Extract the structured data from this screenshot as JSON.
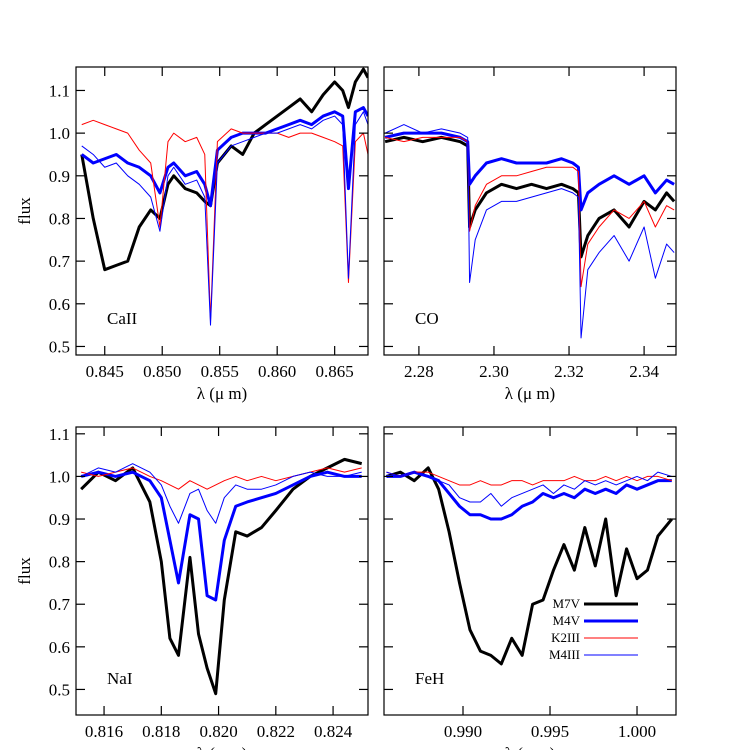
{
  "chart_data": [
    {
      "type": "line",
      "annotation": "CaII",
      "xlabel": "λ (μ m)",
      "ylabel": "flux",
      "xlim": [
        0.8425,
        0.8679
      ],
      "ylim": [
        0.48,
        1.155
      ],
      "xticks": [
        0.845,
        {
          "value": 0.85,
          "label": "0.850"
        },
        0.855,
        {
          "value": 0.86,
          "label": "0.860"
        },
        0.865
      ],
      "yticks": [
        0.5,
        0.6,
        0.7,
        0.8,
        0.9,
        {
          "value": 1,
          "label": "1.0"
        },
        1.1
      ],
      "x": [
        0.843,
        0.844,
        0.845,
        0.846,
        0.847,
        0.848,
        0.849,
        0.8498,
        0.8505,
        0.851,
        0.852,
        0.853,
        0.8537,
        0.8542,
        0.8548,
        0.856,
        0.857,
        0.858,
        0.859,
        0.86,
        0.861,
        0.862,
        0.863,
        0.864,
        0.865,
        0.8657,
        0.8662,
        0.8668,
        0.8675,
        0.8679
      ],
      "series": [
        {
          "color": "#000000",
          "linewidth": 3,
          "values": [
            0.95,
            0.8,
            0.68,
            0.69,
            0.7,
            0.78,
            0.82,
            0.8,
            0.88,
            0.9,
            0.87,
            0.86,
            0.84,
            0.83,
            0.93,
            0.97,
            0.95,
            1.0,
            1.02,
            1.04,
            1.06,
            1.08,
            1.05,
            1.09,
            1.12,
            1.1,
            1.06,
            1.12,
            1.15,
            1.13
          ]
        },
        {
          "color": "#0000ff",
          "linewidth": 3,
          "values": [
            0.95,
            0.93,
            0.94,
            0.95,
            0.93,
            0.92,
            0.9,
            0.86,
            0.92,
            0.93,
            0.9,
            0.91,
            0.88,
            0.83,
            0.96,
            0.99,
            1.0,
            1.0,
            1.0,
            1.01,
            1.02,
            1.03,
            1.02,
            1.04,
            1.05,
            1.04,
            0.87,
            1.05,
            1.06,
            1.04
          ]
        },
        {
          "color": "#ff0000",
          "linewidth": 1,
          "values": [
            1.02,
            1.03,
            1.02,
            1.01,
            1.0,
            0.96,
            0.93,
            0.78,
            0.98,
            1.0,
            0.98,
            0.99,
            0.95,
            0.56,
            0.98,
            1.01,
            1.0,
            1.0,
            1.0,
            1.0,
            0.99,
            1.0,
            1.0,
            0.99,
            0.98,
            0.97,
            0.65,
            0.98,
            1.0,
            0.95
          ]
        },
        {
          "color": "#0000ff",
          "linewidth": 1,
          "values": [
            0.97,
            0.95,
            0.92,
            0.93,
            0.9,
            0.88,
            0.85,
            0.77,
            0.9,
            0.92,
            0.88,
            0.89,
            0.85,
            0.55,
            0.93,
            0.97,
            0.98,
            0.99,
            1.0,
            1.0,
            1.01,
            1.02,
            1.01,
            1.03,
            1.04,
            1.02,
            0.66,
            1.02,
            1.05,
            1.02
          ]
        }
      ]
    },
    {
      "type": "line",
      "annotation": "CO",
      "xlabel": "λ (μ m)",
      "xlim": [
        2.2707,
        2.3485
      ],
      "ylim": [
        0.48,
        1.155
      ],
      "xticks": [
        2.28,
        {
          "value": 2.3,
          "label": "2.30"
        },
        2.32,
        2.34
      ],
      "yticks": [
        0.5,
        0.6,
        0.7,
        0.8,
        0.9,
        1,
        1.1
      ],
      "x": [
        2.271,
        2.276,
        2.281,
        2.286,
        2.291,
        2.293,
        2.2935,
        2.295,
        2.298,
        2.302,
        2.306,
        2.31,
        2.314,
        2.318,
        2.321,
        2.3225,
        2.3232,
        2.325,
        2.328,
        2.332,
        2.336,
        2.34,
        2.343,
        2.346,
        2.348
      ],
      "series": [
        {
          "color": "#000000",
          "linewidth": 3,
          "values": [
            0.98,
            0.99,
            0.98,
            0.99,
            0.98,
            0.97,
            0.78,
            0.82,
            0.86,
            0.88,
            0.87,
            0.88,
            0.87,
            0.88,
            0.87,
            0.86,
            0.71,
            0.76,
            0.8,
            0.82,
            0.78,
            0.84,
            0.82,
            0.86,
            0.84
          ]
        },
        {
          "color": "#0000ff",
          "linewidth": 3,
          "values": [
            0.99,
            1.0,
            1.0,
            1.0,
            0.99,
            0.98,
            0.88,
            0.9,
            0.93,
            0.94,
            0.93,
            0.93,
            0.93,
            0.94,
            0.93,
            0.92,
            0.82,
            0.86,
            0.88,
            0.9,
            0.88,
            0.9,
            0.86,
            0.89,
            0.88
          ]
        },
        {
          "color": "#ff0000",
          "linewidth": 1,
          "values": [
            0.99,
            0.98,
            0.99,
            0.99,
            0.99,
            0.98,
            0.77,
            0.83,
            0.88,
            0.9,
            0.9,
            0.91,
            0.92,
            0.92,
            0.92,
            0.91,
            0.64,
            0.74,
            0.78,
            0.82,
            0.8,
            0.84,
            0.78,
            0.83,
            0.82
          ]
        },
        {
          "color": "#0000ff",
          "linewidth": 1,
          "values": [
            1.0,
            1.02,
            1.0,
            1.01,
            1.0,
            0.99,
            0.65,
            0.75,
            0.82,
            0.84,
            0.84,
            0.85,
            0.86,
            0.87,
            0.86,
            0.85,
            0.52,
            0.68,
            0.72,
            0.76,
            0.7,
            0.78,
            0.66,
            0.74,
            0.72
          ]
        }
      ]
    },
    {
      "type": "line",
      "annotation": "NaI",
      "xlabel": "λ (μ m)",
      "ylabel": "flux",
      "xlim": [
        0.81502,
        0.82522
      ],
      "ylim": [
        0.44,
        1.116
      ],
      "xticks": [
        0.816,
        0.818,
        {
          "value": 0.82,
          "label": "0.820"
        },
        0.822,
        0.824
      ],
      "yticks": [
        0.5,
        0.6,
        0.7,
        0.8,
        0.9,
        {
          "value": 1,
          "label": "1.0"
        },
        1.1
      ],
      "x": [
        0.8152,
        0.8158,
        0.8164,
        0.817,
        0.8176,
        0.818,
        0.8183,
        0.8186,
        0.819,
        0.8193,
        0.8196,
        0.8199,
        0.8202,
        0.8206,
        0.821,
        0.8215,
        0.822,
        0.8226,
        0.8232,
        0.8238,
        0.8244,
        0.825
      ],
      "series": [
        {
          "color": "#000000",
          "linewidth": 3,
          "values": [
            0.97,
            1.01,
            0.99,
            1.02,
            0.94,
            0.8,
            0.62,
            0.58,
            0.81,
            0.63,
            0.55,
            0.49,
            0.71,
            0.87,
            0.86,
            0.88,
            0.92,
            0.97,
            1.0,
            1.02,
            1.04,
            1.03
          ]
        },
        {
          "color": "#0000ff",
          "linewidth": 3,
          "values": [
            1.0,
            1.01,
            1.0,
            1.01,
            0.99,
            0.95,
            0.85,
            0.75,
            0.91,
            0.9,
            0.72,
            0.71,
            0.85,
            0.93,
            0.94,
            0.95,
            0.96,
            0.98,
            1.0,
            1.01,
            1.0,
            1.0
          ]
        },
        {
          "color": "#ff0000",
          "linewidth": 1,
          "values": [
            1.01,
            1.0,
            1.01,
            1.02,
            1.0,
            0.99,
            0.98,
            0.97,
            0.99,
            0.98,
            0.97,
            0.98,
            0.99,
            1.0,
            0.99,
            1.0,
            0.99,
            1.0,
            1.01,
            1.02,
            1.01,
            1.02
          ]
        },
        {
          "color": "#0000ff",
          "linewidth": 1,
          "values": [
            1.0,
            1.02,
            1.01,
            1.03,
            1.01,
            0.98,
            0.93,
            0.89,
            0.96,
            0.97,
            0.92,
            0.89,
            0.95,
            0.98,
            0.97,
            0.97,
            0.98,
            1.0,
            1.01,
            1.0,
            1.0,
            1.01
          ]
        }
      ]
    },
    {
      "type": "line",
      "annotation": "FeH",
      "xlabel": "λ (μ m)",
      "legend": "lower right",
      "xlim": [
        0.98546,
        1.00224
      ],
      "ylim": [
        0.44,
        1.116
      ],
      "xticks": [
        {
          "value": 0.99,
          "label": "0.990"
        },
        0.995,
        {
          "value": 1,
          "label": "1.000"
        }
      ],
      "yticks": [
        0.5,
        0.6,
        0.7,
        0.8,
        0.9,
        1,
        1.1
      ],
      "x": [
        0.9856,
        0.9864,
        0.9872,
        0.988,
        0.9886,
        0.9892,
        0.9898,
        0.9904,
        0.991,
        0.9916,
        0.9922,
        0.9928,
        0.9934,
        0.994,
        0.9946,
        0.9952,
        0.9958,
        0.9964,
        0.997,
        0.9976,
        0.9982,
        0.9988,
        0.9994,
        1.0,
        1.0006,
        1.0012,
        1.002
      ],
      "series": [
        {
          "name": "M7V",
          "color": "#000000",
          "linewidth": 3,
          "values": [
            1.0,
            1.01,
            0.99,
            1.02,
            0.97,
            0.87,
            0.75,
            0.64,
            0.59,
            0.58,
            0.56,
            0.62,
            0.58,
            0.7,
            0.71,
            0.78,
            0.84,
            0.78,
            0.88,
            0.79,
            0.9,
            0.72,
            0.83,
            0.76,
            0.78,
            0.86,
            0.9
          ]
        },
        {
          "name": "M4V",
          "color": "#0000ff",
          "linewidth": 3,
          "values": [
            1.0,
            1.0,
            1.01,
            1.0,
            0.99,
            0.96,
            0.93,
            0.91,
            0.91,
            0.9,
            0.9,
            0.91,
            0.93,
            0.94,
            0.96,
            0.95,
            0.96,
            0.95,
            0.97,
            0.96,
            0.97,
            0.96,
            0.98,
            0.97,
            0.98,
            0.99,
            0.99
          ]
        },
        {
          "name": "K2III",
          "color": "#ff0000",
          "linewidth": 1,
          "values": [
            1.01,
            1.0,
            1.01,
            1.01,
            1.0,
            0.99,
            0.98,
            0.98,
            0.99,
            0.98,
            0.98,
            0.99,
            0.99,
            0.98,
            0.99,
            0.99,
            0.99,
            1.0,
            0.99,
            0.99,
            1.0,
            0.99,
            1.0,
            0.99,
            1.0,
            1.0,
            0.99
          ]
        },
        {
          "name": "M4III",
          "color": "#0000ff",
          "linewidth": 1,
          "values": [
            1.01,
            1.0,
            1.01,
            1.0,
            0.99,
            0.98,
            0.95,
            0.94,
            0.94,
            0.96,
            0.93,
            0.95,
            0.96,
            0.97,
            0.98,
            0.96,
            0.98,
            0.97,
            0.99,
            0.98,
            0.99,
            0.98,
            0.99,
            1.0,
            0.99,
            1.01,
            1.0
          ]
        }
      ]
    }
  ]
}
